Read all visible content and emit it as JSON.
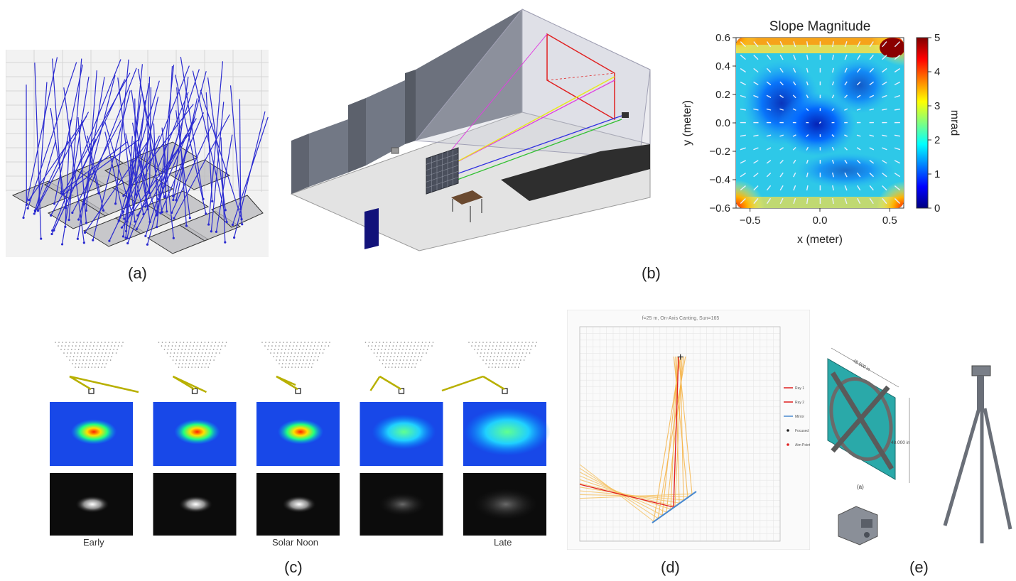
{
  "captions": {
    "a": "(a)",
    "b": "(b)",
    "c": "(c)",
    "d": "(d)",
    "e": "(e)"
  },
  "panel_c": {
    "labels": [
      "Early",
      "Solar Noon",
      "Late"
    ]
  },
  "panel_d": {
    "title": "f=25 m, On-Axis Canting, Sun=165",
    "legend": [
      "Ray 1",
      "Ray 2",
      "Mirror",
      "Focused",
      "Aim Point"
    ]
  },
  "panel_e": {
    "dim_top": "48.000 in",
    "dim_right": "48.000 in",
    "sub_label": "(a)"
  },
  "chart_data": {
    "type": "heatmap",
    "title": "Slope Magnitude",
    "xlabel": "x (meter)",
    "ylabel": "y (meter)",
    "xlim": [
      -0.6,
      0.6
    ],
    "ylim": [
      -0.6,
      0.6
    ],
    "xticks": [
      "−0.5",
      "0.0",
      "0.5"
    ],
    "yticks": [
      "0.6",
      "0.4",
      "0.2",
      "0.0",
      "−0.2",
      "−0.4",
      "−0.6"
    ],
    "colorbar": {
      "label": "mrad",
      "min": 0,
      "max": 5,
      "ticks": [
        "0",
        "1",
        "2",
        "3",
        "4",
        "5"
      ]
    },
    "colormap": "jet"
  }
}
